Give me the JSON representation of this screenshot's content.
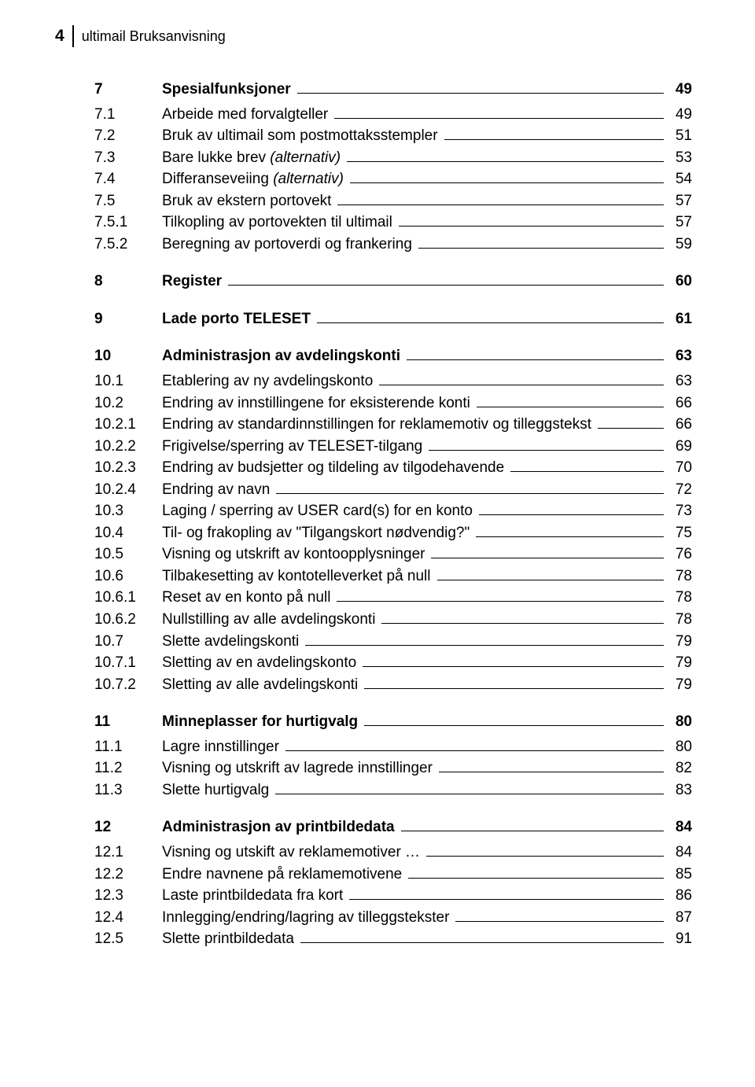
{
  "header": {
    "page_number": "4",
    "title": "ultimail Bruksanvisning"
  },
  "toc": [
    {
      "num": "7",
      "label": "Spesialfunksjoner",
      "page": "49",
      "bold": true,
      "gap_before": "none"
    },
    {
      "num": "7.1",
      "label": "Arbeide med forvalgteller",
      "page": "49",
      "bold": false,
      "gap_before": "sm"
    },
    {
      "num": "7.2",
      "label": "Bruk av ultimail som postmottaksstempler",
      "page": "51",
      "bold": false,
      "gap_before": "none"
    },
    {
      "num": "7.3",
      "label": "Bare lukke brev ",
      "italic": "(alternativ)",
      "page": "53",
      "bold": false,
      "gap_before": "none"
    },
    {
      "num": "7.4",
      "label": "Differanseveiing ",
      "italic": "(alternativ)",
      "page": "54",
      "bold": false,
      "gap_before": "none"
    },
    {
      "num": "7.5",
      "label": "Bruk av ekstern portovekt",
      "page": "57",
      "bold": false,
      "gap_before": "none"
    },
    {
      "num": "7.5.1",
      "label": "Tilkopling av portovekten til ultimail",
      "page": "57",
      "bold": false,
      "gap_before": "none"
    },
    {
      "num": "7.5.2",
      "label": "Beregning av portoverdi og frankering",
      "page": "59",
      "bold": false,
      "gap_before": "none"
    },
    {
      "num": "8",
      "label": "Register",
      "page": "60",
      "bold": true,
      "gap_before": "md"
    },
    {
      "num": "9",
      "label": "Lade porto TELESET",
      "page": "61",
      "bold": true,
      "gap_before": "md"
    },
    {
      "num": "10",
      "label": "Administrasjon av avdelingskonti",
      "page": "63",
      "bold": true,
      "gap_before": "md"
    },
    {
      "num": "10.1",
      "label": "Etablering av ny avdelingskonto",
      "page": "63",
      "bold": false,
      "gap_before": "sm"
    },
    {
      "num": "10.2",
      "label": "Endring av innstillingene for eksisterende konti",
      "page": "66",
      "bold": false,
      "gap_before": "none"
    },
    {
      "num": "10.2.1",
      "label": "Endring av standardinnstillingen for reklamemotiv og tilleggstekst",
      "page": "66",
      "bold": false,
      "gap_before": "none"
    },
    {
      "num": "10.2.2",
      "label": "Frigivelse/sperring av TELESET-tilgang",
      "page": "69",
      "bold": false,
      "gap_before": "none"
    },
    {
      "num": "10.2.3",
      "label": "Endring av budsjetter og tildeling av tilgodehavende",
      "page": "70",
      "bold": false,
      "gap_before": "none"
    },
    {
      "num": "10.2.4",
      "label": "Endring av navn",
      "page": "72",
      "bold": false,
      "gap_before": "none"
    },
    {
      "num": "10.3",
      "label": "Laging / sperring av USER card(s) for en konto",
      "page": "73",
      "bold": false,
      "gap_before": "none"
    },
    {
      "num": "10.4",
      "label": "Til- og frakopling av \"Tilgangskort nødvendig?\"",
      "page": "75",
      "bold": false,
      "gap_before": "none"
    },
    {
      "num": "10.5",
      "label": "Visning og utskrift av kontoopplysninger",
      "page": "76",
      "bold": false,
      "gap_before": "none"
    },
    {
      "num": "10.6",
      "label": "Tilbakesetting av kontotelleverket på null",
      "page": "78",
      "bold": false,
      "gap_before": "none"
    },
    {
      "num": "10.6.1",
      "label": "Reset av en konto på null",
      "page": "78",
      "bold": false,
      "gap_before": "none"
    },
    {
      "num": "10.6.2",
      "label": "Nullstilling av alle avdelingskonti",
      "page": "78",
      "bold": false,
      "gap_before": "none"
    },
    {
      "num": "10.7",
      "label": "Slette avdelingskonti",
      "page": "79",
      "bold": false,
      "gap_before": "none"
    },
    {
      "num": "10.7.1",
      "label": "Sletting av en avdelingskonto",
      "page": "79",
      "bold": false,
      "gap_before": "none"
    },
    {
      "num": "10.7.2",
      "label": "Sletting av alle avdelingskonti",
      "page": "79",
      "bold": false,
      "gap_before": "none"
    },
    {
      "num": "11",
      "label": "Minneplasser for hurtigvalg",
      "page": "80",
      "bold": true,
      "gap_before": "md"
    },
    {
      "num": "11.1",
      "label": "Lagre innstillinger",
      "page": "80",
      "bold": false,
      "gap_before": "sm"
    },
    {
      "num": "11.2",
      "label": "Visning og utskrift av lagrede innstillinger",
      "page": "82",
      "bold": false,
      "gap_before": "none"
    },
    {
      "num": "11.3",
      "label": "Slette hurtigvalg",
      "page": "83",
      "bold": false,
      "gap_before": "none"
    },
    {
      "num": "12",
      "label": "Administrasjon av printbildedata",
      "page": "84",
      "bold": true,
      "gap_before": "md"
    },
    {
      "num": "12.1",
      "label": "Visning og utskift av reklamemotiver …",
      "page": "84",
      "bold": false,
      "gap_before": "sm"
    },
    {
      "num": "12.2",
      "label": "Endre navnene på reklamemotivene",
      "page": "85",
      "bold": false,
      "gap_before": "none"
    },
    {
      "num": "12.3",
      "label": "Laste printbildedata fra kort",
      "page": "86",
      "bold": false,
      "gap_before": "none"
    },
    {
      "num": "12.4",
      "label": "Innlegging/endring/lagring av tilleggstekster",
      "page": "87",
      "bold": false,
      "gap_before": "none"
    },
    {
      "num": "12.5",
      "label": "Slette printbildedata",
      "page": "91",
      "bold": false,
      "gap_before": "none"
    }
  ]
}
